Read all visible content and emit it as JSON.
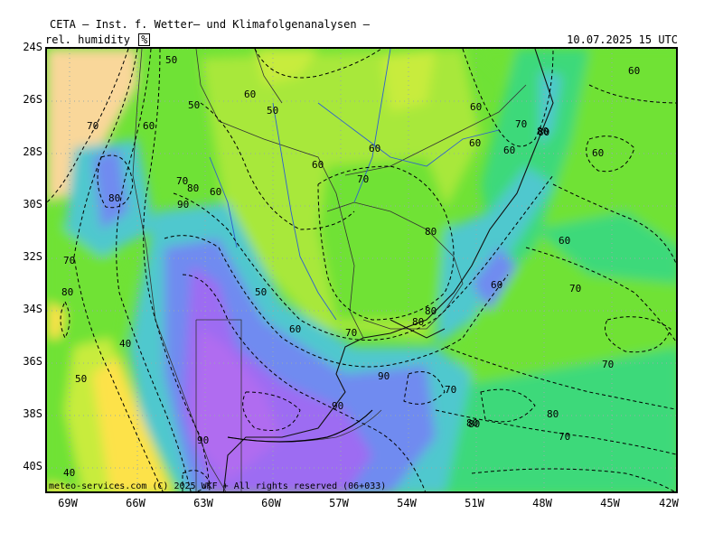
{
  "header": {
    "title": "CETA — Inst. f. Wetter— und Klimafolgenanalysen —",
    "parameter": "rel. humidity",
    "unit": "%",
    "datetime": "10.07.2025 15 UTC"
  },
  "copyright": "meteo-services.com (C) 2025 WKF + All rights reserved (06+033)",
  "axes": {
    "lat_labels": [
      "24S",
      "26S",
      "28S",
      "30S",
      "32S",
      "34S",
      "36S",
      "38S",
      "40S"
    ],
    "lon_labels": [
      "69W",
      "66W",
      "63W",
      "60W",
      "57W",
      "54W",
      "51W",
      "48W",
      "45W",
      "42W"
    ]
  },
  "contour_labels": [
    "50",
    "50",
    "60",
    "50",
    "60",
    "70",
    "60",
    "60",
    "80",
    "60",
    "60",
    "80",
    "60",
    "80",
    "70",
    "60",
    "70",
    "70",
    "80",
    "80",
    "90",
    "70",
    "60",
    "60",
    "80",
    "80",
    "60",
    "60",
    "70",
    "50",
    "60",
    "80",
    "40",
    "50",
    "70",
    "90",
    "80",
    "90",
    "40",
    "90",
    "70",
    "70",
    "80",
    "80",
    "70"
  ],
  "colors": {
    "c40": "#fde24a",
    "c50": "#c8ec3c",
    "c60": "#6fe236",
    "c70": "#3ed97a",
    "c80": "#4fc8ce",
    "c90": "#6f8bf0",
    "c95": "#9d6cf2",
    "land_dry": "#f9d79a"
  }
}
